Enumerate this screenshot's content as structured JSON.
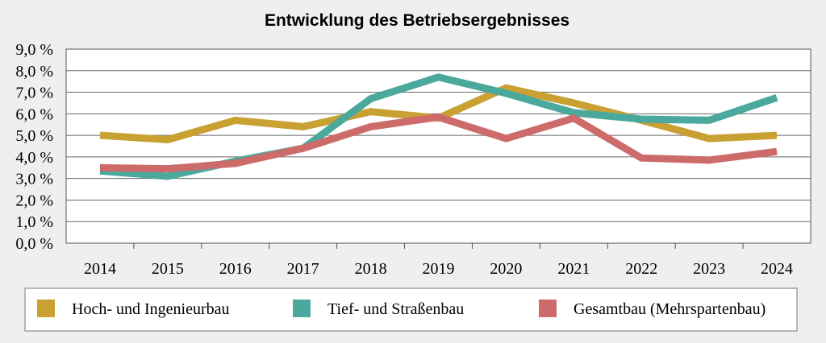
{
  "chart_data": {
    "type": "line",
    "title": "Entwicklung des Betriebsergebnisses",
    "xlabel": "",
    "ylabel": "",
    "x": [
      "2014",
      "2015",
      "2016",
      "2017",
      "2018",
      "2019",
      "2020",
      "2021",
      "2022",
      "2023",
      "2024"
    ],
    "ylim": [
      0,
      9
    ],
    "y_ticks": [
      "0,0 %",
      "1,0 %",
      "2,0 %",
      "3,0 %",
      "4,0 %",
      "5,0 %",
      "6,0 %",
      "7,0 %",
      "8,0 %",
      "9,0 %"
    ],
    "grid": true,
    "legend_position": "bottom",
    "series": [
      {
        "name": "Hoch- und Ingenieurbau",
        "color": "#c9a032",
        "values": [
          5.0,
          4.8,
          5.7,
          5.4,
          6.1,
          5.8,
          7.2,
          6.5,
          5.7,
          4.85,
          5.0
        ]
      },
      {
        "name": "Tief- und Straßenbau",
        "color": "#4aa99c",
        "values": [
          3.35,
          3.1,
          3.8,
          4.4,
          6.7,
          7.7,
          6.95,
          6.05,
          5.75,
          5.7,
          6.75
        ]
      },
      {
        "name": "Gesamtbau (Mehrspartenbau)",
        "color": "#cd6b6b",
        "values": [
          3.5,
          3.45,
          3.7,
          4.4,
          5.4,
          5.85,
          4.85,
          5.8,
          3.95,
          3.85,
          4.25
        ]
      }
    ]
  }
}
